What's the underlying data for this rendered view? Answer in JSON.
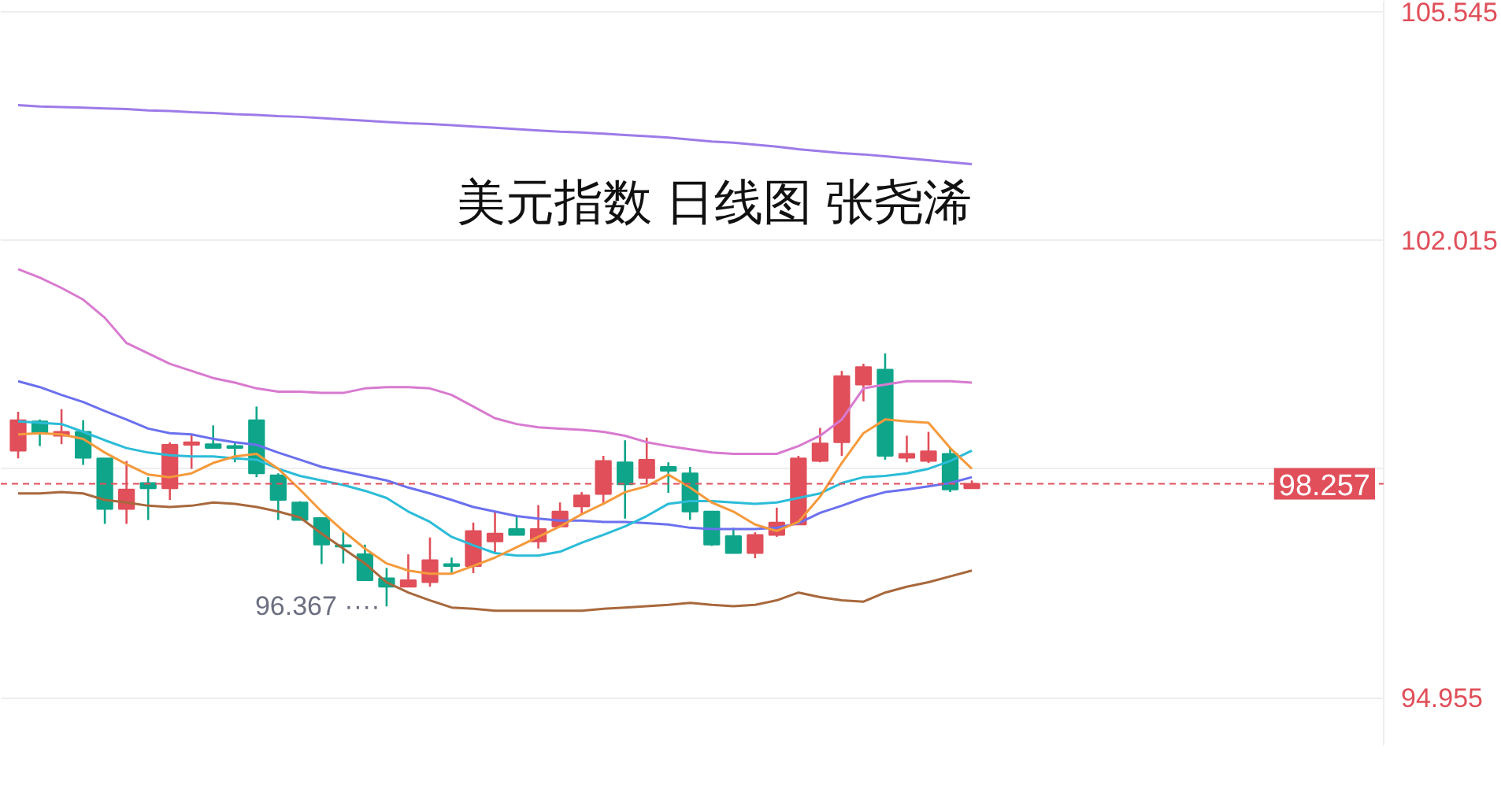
{
  "chart_data": {
    "type": "candlestick",
    "title": "美元指数 日线图 张尧浠",
    "categories": [
      null,
      null,
      null,
      null,
      null,
      null,
      null,
      null,
      null,
      null,
      null,
      null,
      null,
      null,
      null,
      null,
      null,
      null,
      null,
      null,
      null,
      null,
      null,
      null,
      null,
      null,
      null,
      null,
      null,
      null,
      null,
      null,
      null,
      null,
      null,
      null,
      null,
      null,
      null,
      null,
      null,
      null,
      null,
      null,
      null
    ],
    "ohlc": [
      [
        98.77,
        99.37,
        98.65,
        99.24
      ],
      [
        99.22,
        99.25,
        98.84,
        99.03
      ],
      [
        99.0,
        99.41,
        98.87,
        99.06
      ],
      [
        99.06,
        99.24,
        98.55,
        98.66
      ],
      [
        98.65,
        98.65,
        97.64,
        97.87
      ],
      [
        97.87,
        98.61,
        97.64,
        98.17
      ],
      [
        98.27,
        98.36,
        97.7,
        98.19
      ],
      [
        98.19,
        98.9,
        98.01,
        98.86
      ],
      [
        98.86,
        99.03,
        98.49,
        98.9
      ],
      [
        98.87,
        99.16,
        98.81,
        98.81
      ],
      [
        98.84,
        98.91,
        98.59,
        98.81
      ],
      [
        99.24,
        99.45,
        98.36,
        98.42
      ],
      [
        98.39,
        98.42,
        97.7,
        98.01
      ],
      [
        97.97,
        97.99,
        97.7,
        97.7
      ],
      [
        97.73,
        97.73,
        97.02,
        97.32
      ],
      [
        97.31,
        97.53,
        97.03,
        97.29
      ],
      [
        97.17,
        97.32,
        96.77,
        96.77
      ],
      [
        96.8,
        96.96,
        96.367,
        96.67
      ],
      [
        96.67,
        97.17,
        96.67,
        96.77
      ],
      [
        96.74,
        97.43,
        96.67,
        97.08
      ],
      [
        97.02,
        97.12,
        96.87,
        96.99
      ],
      [
        96.99,
        97.66,
        96.88,
        97.53
      ],
      [
        97.37,
        97.82,
        97.19,
        97.49
      ],
      [
        97.56,
        97.76,
        97.47,
        97.47
      ],
      [
        97.37,
        97.93,
        97.26,
        97.56
      ],
      [
        97.6,
        97.97,
        97.6,
        97.83
      ],
      [
        97.91,
        98.13,
        97.79,
        98.08
      ],
      [
        98.1,
        98.69,
        97.94,
        98.61
      ],
      [
        98.59,
        98.93,
        97.72,
        98.25
      ],
      [
        98.35,
        98.97,
        98.25,
        98.63
      ],
      [
        98.52,
        98.59,
        98.12,
        98.46
      ],
      [
        98.42,
        98.52,
        97.7,
        97.83
      ],
      [
        97.83,
        97.83,
        97.3,
        97.32
      ],
      [
        97.45,
        97.58,
        97.19,
        97.19
      ],
      [
        97.19,
        97.51,
        97.11,
        97.47
      ],
      [
        97.47,
        97.89,
        97.44,
        97.66
      ],
      [
        97.63,
        98.69,
        97.63,
        98.65
      ],
      [
        98.61,
        99.12,
        98.59,
        98.88
      ],
      [
        98.9,
        100.0,
        98.69,
        99.92
      ],
      [
        99.79,
        100.11,
        99.53,
        100.06
      ],
      [
        100.02,
        100.27,
        98.63,
        98.69
      ],
      [
        98.66,
        99.0,
        98.59,
        98.72
      ],
      [
        98.61,
        99.06,
        98.58,
        98.76
      ],
      [
        98.72,
        98.82,
        98.13,
        98.17
      ],
      [
        98.19,
        98.31,
        98.19,
        98.257
      ]
    ],
    "colors": [
      "#e04f5a",
      "#0fa58a",
      "#e04f5a",
      "#0fa58a",
      "#0fa58a",
      "#e04f5a",
      "#0fa58a",
      "#e04f5a",
      "#e04f5a",
      "#0fa58a",
      "#0fa58a",
      "#0fa58a",
      "#0fa58a",
      "#0fa58a",
      "#0fa58a",
      "#0fa58a",
      "#0fa58a",
      "#0fa58a",
      "#e04f5a",
      "#e04f5a",
      "#0fa58a",
      "#e04f5a",
      "#e04f5a",
      "#0fa58a",
      "#e04f5a",
      "#e04f5a",
      "#e04f5a",
      "#e04f5a",
      "#0fa58a",
      "#e04f5a",
      "#0fa58a",
      "#0fa58a",
      "#0fa58a",
      "#0fa58a",
      "#e04f5a",
      "#e04f5a",
      "#e04f5a",
      "#e04f5a",
      "#e04f5a",
      "#e04f5a",
      "#0fa58a",
      "#e04f5a",
      "#e04f5a",
      "#0fa58a",
      "#e04f5a"
    ],
    "series": [
      {
        "type": "line",
        "color": "#9d7be8",
        "values": [
          104.1,
          104.08,
          104.07,
          104.06,
          104.05,
          104.04,
          104.02,
          104.01,
          103.99,
          103.98,
          103.96,
          103.95,
          103.93,
          103.92,
          103.9,
          103.88,
          103.86,
          103.84,
          103.82,
          103.81,
          103.79,
          103.77,
          103.75,
          103.73,
          103.71,
          103.69,
          103.68,
          103.66,
          103.64,
          103.62,
          103.6,
          103.57,
          103.54,
          103.52,
          103.49,
          103.46,
          103.42,
          103.39,
          103.36,
          103.34,
          103.31,
          103.28,
          103.25,
          103.22,
          103.19
        ]
      },
      {
        "type": "line",
        "color": "#d87ad0",
        "values": [
          101.57,
          101.44,
          101.28,
          101.1,
          100.82,
          100.43,
          100.27,
          100.11,
          100.0,
          99.89,
          99.82,
          99.73,
          99.68,
          99.68,
          99.66,
          99.66,
          99.73,
          99.75,
          99.75,
          99.73,
          99.63,
          99.45,
          99.27,
          99.18,
          99.13,
          99.11,
          99.09,
          99.06,
          99.0,
          98.9,
          98.84,
          98.79,
          98.74,
          98.72,
          98.72,
          98.72,
          98.84,
          99.0,
          99.25,
          99.73,
          99.79,
          99.84,
          99.84,
          99.84,
          99.82
        ]
      },
      {
        "type": "line",
        "color": "#6b70ee",
        "values": [
          99.84,
          99.75,
          99.63,
          99.52,
          99.38,
          99.25,
          99.11,
          99.04,
          99.02,
          98.95,
          98.9,
          98.86,
          98.74,
          98.63,
          98.52,
          98.45,
          98.38,
          98.31,
          98.2,
          98.11,
          98.01,
          97.9,
          97.83,
          97.76,
          97.72,
          97.69,
          97.69,
          97.67,
          97.67,
          97.65,
          97.63,
          97.58,
          97.56,
          97.56,
          97.56,
          97.58,
          97.65,
          97.81,
          97.92,
          98.04,
          98.13,
          98.17,
          98.22,
          98.27,
          98.36
        ]
      },
      {
        "type": "line",
        "color": "#2bbcd8",
        "values": [
          99.22,
          99.2,
          99.18,
          99.06,
          98.93,
          98.81,
          98.74,
          98.7,
          98.68,
          98.68,
          98.65,
          98.63,
          98.49,
          98.38,
          98.31,
          98.24,
          98.15,
          98.04,
          97.83,
          97.67,
          97.44,
          97.31,
          97.19,
          97.15,
          97.15,
          97.21,
          97.35,
          97.47,
          97.6,
          97.76,
          97.95,
          97.99,
          97.99,
          97.97,
          97.95,
          97.97,
          98.04,
          98.11,
          98.27,
          98.36,
          98.38,
          98.42,
          98.49,
          98.61,
          98.77
        ]
      },
      {
        "type": "line",
        "color": "#f59a3c",
        "values": [
          99.02,
          99.04,
          99.02,
          98.95,
          98.74,
          98.56,
          98.4,
          98.36,
          98.42,
          98.58,
          98.68,
          98.72,
          98.49,
          98.17,
          97.83,
          97.53,
          97.26,
          97.03,
          96.92,
          96.87,
          96.87,
          96.99,
          97.12,
          97.28,
          97.44,
          97.6,
          97.79,
          97.95,
          98.13,
          98.22,
          98.4,
          98.2,
          97.97,
          97.83,
          97.63,
          97.53,
          97.67,
          98.06,
          98.58,
          99.04,
          99.25,
          99.22,
          99.2,
          98.81,
          98.49
        ]
      },
      {
        "type": "line",
        "color": "#a8683c",
        "values": [
          98.11,
          98.11,
          98.13,
          98.11,
          98.01,
          97.97,
          97.92,
          97.9,
          97.92,
          97.97,
          97.95,
          97.9,
          97.83,
          97.74,
          97.49,
          97.26,
          97.03,
          96.74,
          96.58,
          96.46,
          96.35,
          96.33,
          96.3,
          96.3,
          96.3,
          96.3,
          96.3,
          96.33,
          96.35,
          96.37,
          96.39,
          96.42,
          96.39,
          96.37,
          96.39,
          96.46,
          96.58,
          96.51,
          96.46,
          96.44,
          96.58,
          96.67,
          96.74,
          96.83,
          96.92
        ]
      }
    ],
    "annotations": [
      "96.367 ····"
    ],
    "ref_lines": [
      {
        "axis": "y",
        "value": 98.257,
        "label": "98.257",
        "color": "#e04f5a",
        "line_style": "dashed"
      }
    ],
    "ylim": [
      94.22,
      105.71
    ],
    "yticks": [
      105.545,
      102.015,
      {
        "value": 98.485,
        "label": null
      },
      94.955
    ],
    "grid": "y",
    "tick_labels": "y"
  }
}
